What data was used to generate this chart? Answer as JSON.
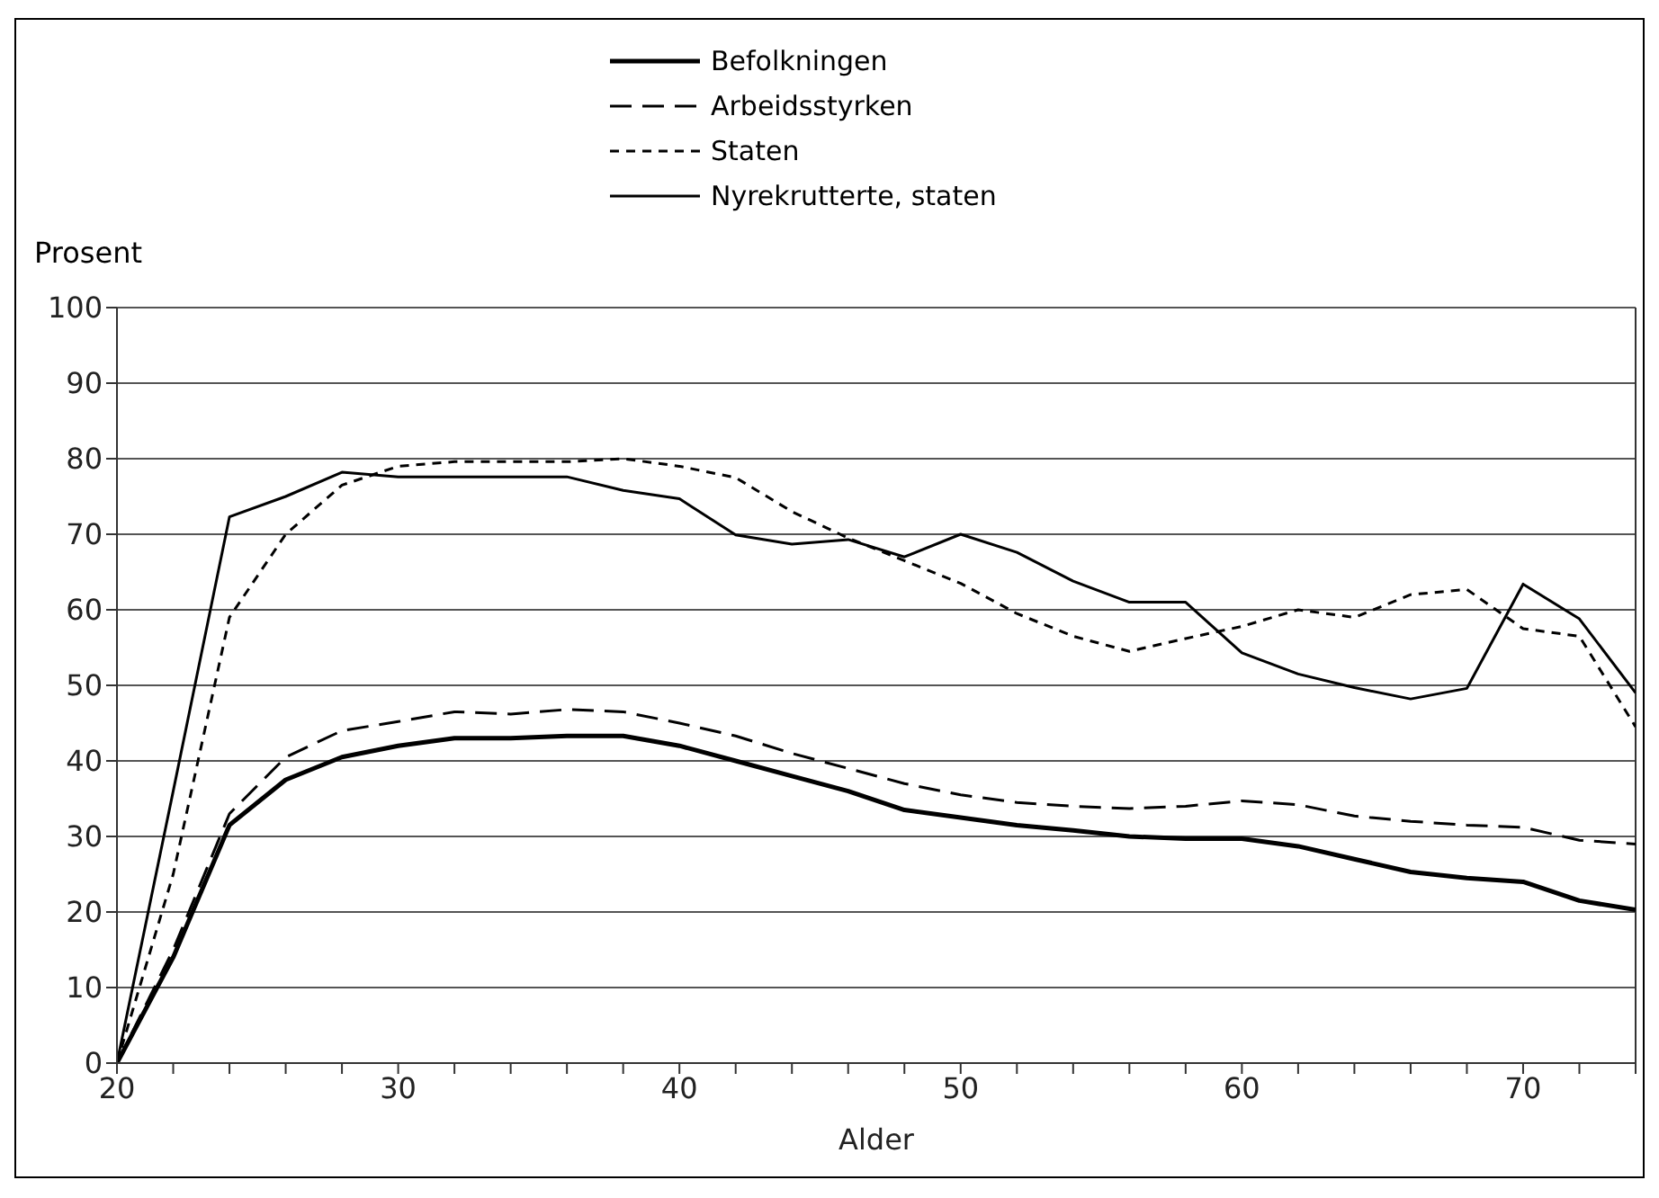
{
  "chart_data": {
    "type": "line",
    "xlabel": "Alder",
    "ylabel": "Prosent",
    "x": [
      20,
      22,
      24,
      26,
      28,
      30,
      32,
      34,
      36,
      38,
      40,
      42,
      44,
      46,
      48,
      50,
      52,
      54,
      56,
      58,
      60,
      62,
      64,
      66,
      68,
      70,
      72,
      74
    ],
    "series": [
      {
        "name": "Befolkningen",
        "color": "#000000",
        "line_style": "solid",
        "values": [
          0,
          14,
          31.5,
          37.5,
          40.5,
          42,
          43,
          43,
          43.3,
          43.3,
          42,
          40,
          38,
          36,
          33.5,
          32.5,
          31.5,
          30.8,
          30,
          29.7,
          29.7,
          28.7,
          27,
          25.3,
          24.5,
          24,
          21.5,
          20.3
        ]
      },
      {
        "name": "Arbeidsstyrken",
        "color": "#000000",
        "line_style": "dashed",
        "values": [
          0,
          15,
          33,
          40.5,
          44,
          45.2,
          46.5,
          46.2,
          46.8,
          46.5,
          45,
          43.3,
          41,
          39,
          37,
          35.5,
          34.5,
          34,
          33.7,
          34,
          34.7,
          34.2,
          32.7,
          32,
          31.5,
          31.2,
          29.5,
          29
        ]
      },
      {
        "name": "Staten",
        "color": "#000000",
        "line_style": "dotted",
        "values": [
          0,
          25,
          59,
          70,
          76.5,
          79,
          79.6,
          79.6,
          79.6,
          80,
          79,
          77.5,
          73,
          69.5,
          66.5,
          63.5,
          59.5,
          56.5,
          54.5,
          56.2,
          57.8,
          60,
          59,
          62,
          62.7,
          57.5,
          56.5,
          44.5
        ]
      },
      {
        "name": "Nyrekrutterte, staten",
        "color": "#000000",
        "line_style": "solid",
        "values": [
          0,
          36,
          72.3,
          75,
          78.2,
          77.6,
          77.6,
          77.6,
          77.6,
          75.8,
          74.7,
          69.9,
          68.7,
          69.3,
          67,
          70,
          67.6,
          63.8,
          61,
          61,
          54.3,
          51.5,
          49.7,
          48.2,
          49.6,
          63.4,
          58.8,
          49
        ]
      }
    ],
    "xlim": [
      20,
      74
    ],
    "xticks": [
      20,
      {
        "value": 22,
        "label": null
      },
      {
        "value": 24,
        "label": null
      },
      {
        "value": 26,
        "label": null
      },
      {
        "value": 28,
        "label": null
      },
      30,
      {
        "value": 32,
        "label": null
      },
      {
        "value": 34,
        "label": null
      },
      {
        "value": 36,
        "label": null
      },
      {
        "value": 38,
        "label": null
      },
      40,
      {
        "value": 42,
        "label": null
      },
      {
        "value": 44,
        "label": null
      },
      {
        "value": 46,
        "label": null
      },
      {
        "value": 48,
        "label": null
      },
      50,
      {
        "value": 52,
        "label": null
      },
      {
        "value": 54,
        "label": null
      },
      {
        "value": 56,
        "label": null
      },
      {
        "value": 58,
        "label": null
      },
      60,
      {
        "value": 62,
        "label": null
      },
      {
        "value": 64,
        "label": null
      },
      {
        "value": 66,
        "label": null
      },
      {
        "value": 68,
        "label": null
      },
      70,
      {
        "value": 72,
        "label": null
      },
      {
        "value": 74,
        "label": null
      }
    ],
    "ylim": [
      0,
      100
    ],
    "yticks": [
      0,
      10,
      20,
      30,
      40,
      50,
      60,
      70,
      80,
      90,
      100
    ],
    "grid": "y",
    "legend": "top",
    "marker": "none"
  }
}
